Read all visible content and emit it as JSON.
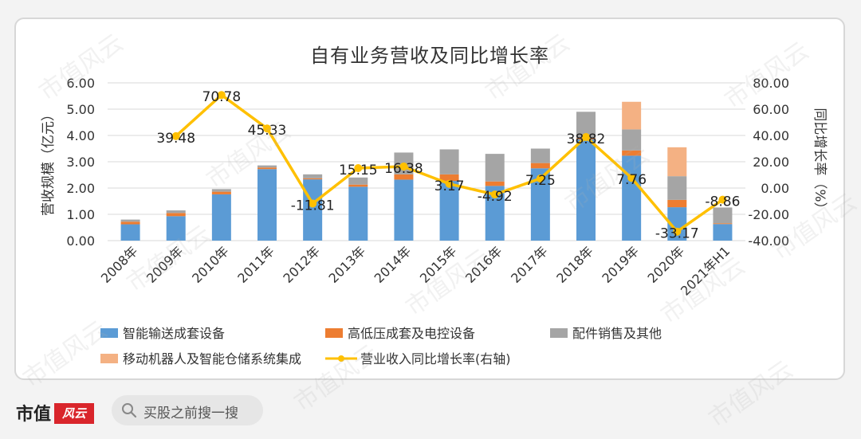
{
  "page": {
    "brand_name": "市值",
    "brand_logo_text": "风云",
    "search_placeholder": "买股之前搜一搜",
    "watermark_text": "市值风云"
  },
  "colors": {
    "blue": "#5b9bd5",
    "orange": "#ed7d31",
    "gray": "#a5a5a5",
    "peach": "#f4b183",
    "yellow": "#ffc000"
  },
  "chart_data": {
    "type": "bar",
    "stacked": true,
    "title": "自有业务营收及同比增长率",
    "ylabel": "营收规模（亿元）",
    "y2label": "同比增长率（%）",
    "ylim": [
      0,
      6
    ],
    "y2lim": [
      -40,
      80
    ],
    "yticks": [
      "0.00",
      "1.00",
      "2.00",
      "3.00",
      "4.00",
      "5.00",
      "6.00"
    ],
    "y2ticks": [
      "-40.00",
      "-20.00",
      "0.00",
      "20.00",
      "40.00",
      "60.00",
      "80.00"
    ],
    "grid": true,
    "legend_position": "bottom",
    "categories": [
      "2008年",
      "2009年",
      "2010年",
      "2011年",
      "2012年",
      "2013年",
      "2014年",
      "2015年",
      "2016年",
      "2017年",
      "2018年",
      "2019年",
      "2020年",
      "2021年H1"
    ],
    "series": [
      {
        "name": "智能输送成套设备",
        "color": "#5b9bd5",
        "values": [
          0.62,
          0.93,
          1.76,
          2.72,
          2.33,
          2.05,
          2.32,
          2.27,
          2.08,
          2.75,
          3.85,
          3.23,
          1.27,
          0.63
        ]
      },
      {
        "name": "高低压成套及电控设备",
        "color": "#ed7d31",
        "values": [
          0.1,
          0.12,
          0.1,
          0.06,
          0.04,
          0.08,
          0.2,
          0.25,
          0.17,
          0.2,
          0.05,
          0.2,
          0.28,
          0.03
        ]
      },
      {
        "name": "配件销售及其他",
        "color": "#a5a5a5",
        "values": [
          0.08,
          0.1,
          0.1,
          0.08,
          0.15,
          0.27,
          0.83,
          0.95,
          1.05,
          0.55,
          1.0,
          0.8,
          0.9,
          0.6
        ]
      },
      {
        "name": "移动机器人及智能仓储系统集成",
        "color": "#f4b183",
        "values": [
          0,
          0,
          0,
          0,
          0,
          0,
          0,
          0,
          0,
          0,
          0,
          1.05,
          1.1,
          0
        ]
      }
    ],
    "line": {
      "name": "营业收入同比增长率(右轴)",
      "color": "#ffc000",
      "values": [
        null,
        39.48,
        70.78,
        45.33,
        -11.81,
        15.15,
        16.38,
        3.17,
        -4.92,
        7.25,
        38.82,
        7.76,
        -33.17,
        -8.86
      ],
      "labels": [
        "",
        "39.48",
        "70.78",
        "45.33",
        "-11.81",
        "15.15",
        "16.38",
        "3.17",
        "-4.92",
        "7.25",
        "38.82",
        "7.76",
        "-33.17",
        "-8.86"
      ]
    }
  }
}
